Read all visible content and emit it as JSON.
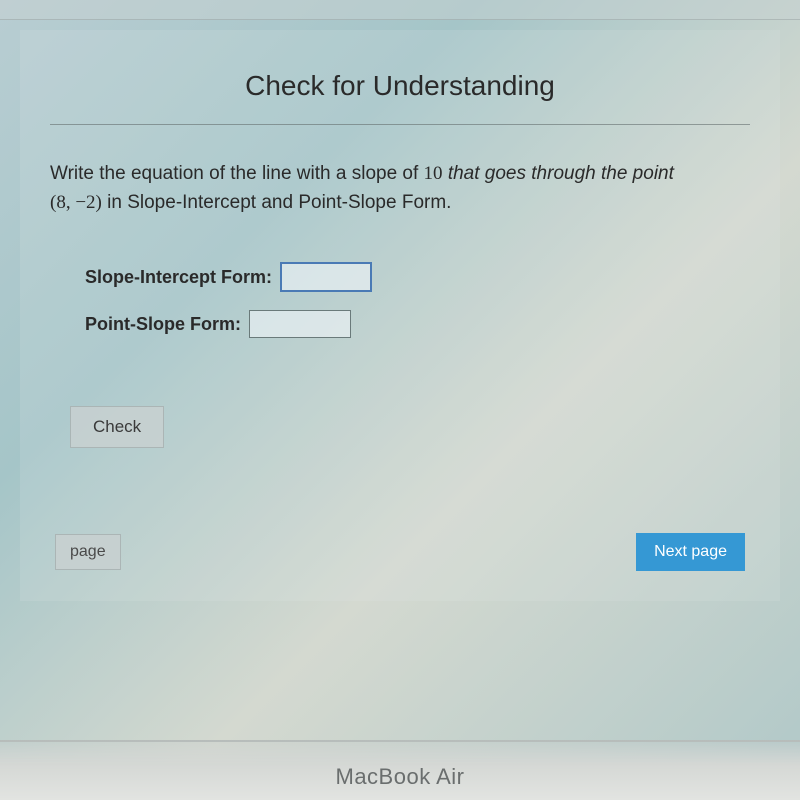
{
  "title": "Check for Understanding",
  "question": {
    "prefix": "Write the equation of the line with a slope of ",
    "slope": "10",
    "mid1": " that goes through the point ",
    "point": "(8, −2)",
    "suffix": " in Slope-Intercept and Point-Slope Form."
  },
  "form": {
    "slope_intercept_label": "Slope-Intercept Form:",
    "slope_intercept_value": "",
    "point_slope_label": "Point-Slope Form:",
    "point_slope_value": ""
  },
  "buttons": {
    "check": "Check",
    "prev": "page",
    "next": "Next page"
  },
  "device": "MacBook Air",
  "colors": {
    "accent": "#3598d4",
    "input_focus_border": "#4a7ab5"
  }
}
